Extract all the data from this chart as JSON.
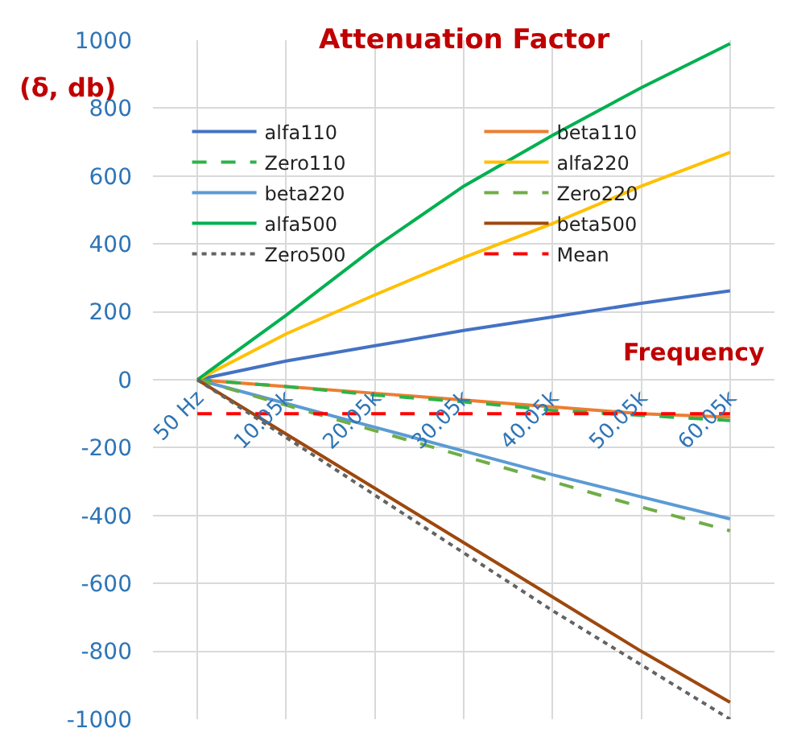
{
  "chart_data": {
    "type": "line",
    "title": "Attenuation Factor",
    "xlabel": "Frequency",
    "ylabel": "(δ, db)",
    "x": [
      50,
      10050,
      20050,
      30050,
      40050,
      50050,
      60050
    ],
    "xlim": [
      -4950,
      65050
    ],
    "xticks": [
      {
        "value": 50,
        "label": "50 Hz"
      },
      {
        "value": 10050,
        "label": "10.05k"
      },
      {
        "value": 20050,
        "label": "20.05k"
      },
      {
        "value": 30050,
        "label": "30.05k"
      },
      {
        "value": 40050,
        "label": "40.05k"
      },
      {
        "value": 50050,
        "label": "50.05k"
      },
      {
        "value": 60050,
        "label": "60.05k"
      }
    ],
    "ylim": [
      -1000,
      1000
    ],
    "yticks": [
      -1000,
      -800,
      -600,
      -400,
      -200,
      0,
      200,
      400,
      600,
      800,
      1000
    ],
    "grid": true,
    "legend": "top",
    "marker": "none",
    "series": [
      {
        "name": "alfa110",
        "color": "#4472c4",
        "line_style": "solid",
        "values": [
          0,
          55,
          100,
          145,
          185,
          225,
          262
        ]
      },
      {
        "name": "beta110",
        "color": "#ed7d31",
        "line_style": "solid",
        "values": [
          0,
          -20,
          -40,
          -60,
          -80,
          -100,
          -110
        ]
      },
      {
        "name": "Zero110",
        "color": "#2db34a",
        "line_style": "dashed",
        "values": [
          0,
          -20,
          -45,
          -65,
          -90,
          -105,
          -120
        ]
      },
      {
        "name": "alfa220",
        "color": "#ffc000",
        "line_style": "solid",
        "values": [
          0,
          135,
          250,
          360,
          460,
          570,
          670
        ]
      },
      {
        "name": "beta220",
        "color": "#5b9bd5",
        "line_style": "solid",
        "values": [
          0,
          -70,
          -140,
          -210,
          -280,
          -345,
          -410
        ]
      },
      {
        "name": "Zero220",
        "color": "#70ad47",
        "line_style": "dashed",
        "values": [
          0,
          -75,
          -150,
          -225,
          -300,
          -375,
          -445
        ]
      },
      {
        "name": "alfa500",
        "color": "#00b050",
        "line_style": "solid",
        "values": [
          0,
          190,
          390,
          570,
          720,
          860,
          990
        ]
      },
      {
        "name": "beta500",
        "color": "#9e480e",
        "line_style": "solid",
        "values": [
          0,
          -160,
          -320,
          -480,
          -640,
          -800,
          -950
        ]
      },
      {
        "name": "Zero500",
        "color": "#636363",
        "line_style": "dotted",
        "values": [
          0,
          -170,
          -340,
          -510,
          -680,
          -840,
          -1000
        ]
      },
      {
        "name": "Mean",
        "color": "#ff0000",
        "line_style": "dashed",
        "values": [
          -100,
          -100,
          -100,
          -100,
          -100,
          -100,
          -100
        ]
      }
    ]
  }
}
